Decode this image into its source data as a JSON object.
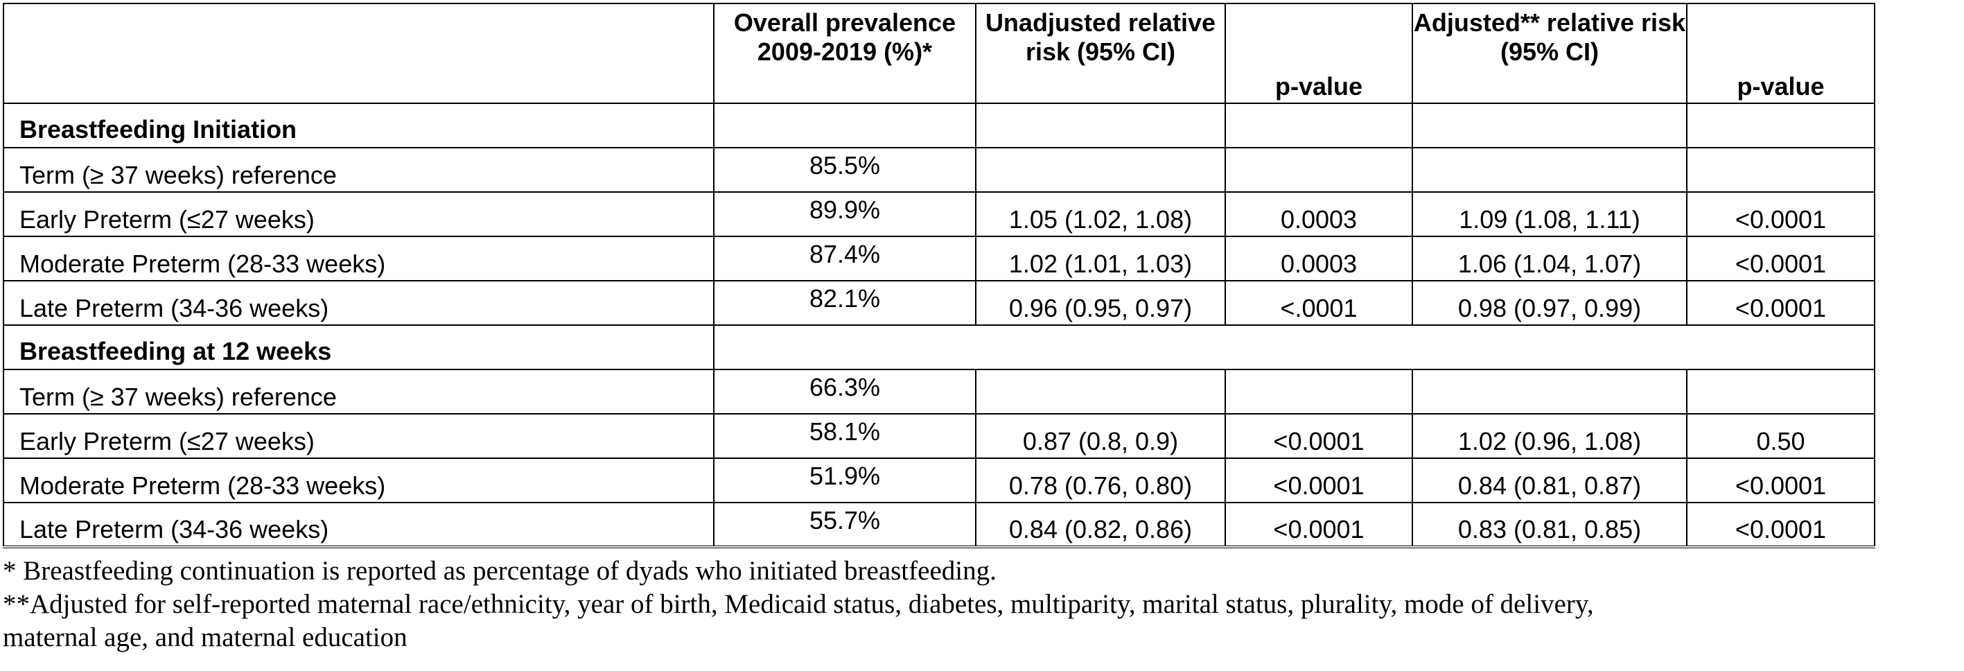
{
  "table": {
    "headers": {
      "label": "",
      "overall": "Overall prevalence 2009-2019 (%)*",
      "unadjusted": "Unadjusted relative risk (95% CI)",
      "p_value_1": "p-value",
      "adjusted": "Adjusted** relative risk (95% CI)",
      "p_value_2": "p-value"
    },
    "sections": [
      {
        "title": "Breastfeeding Initiation",
        "rows": [
          {
            "label": "Term (≥ 37 weeks) reference",
            "overall": "85.5%",
            "unadjusted": "",
            "p1": "",
            "adjusted": "",
            "p2": ""
          },
          {
            "label": "Early Preterm (≤27 weeks)",
            "overall": "89.9%",
            "unadjusted": "1.05 (1.02, 1.08)",
            "p1": "0.0003",
            "adjusted": "1.09 (1.08, 1.11)",
            "p2": "<0.0001"
          },
          {
            "label": "Moderate Preterm (28-33 weeks)",
            "overall": "87.4%",
            "unadjusted": "1.02 (1.01, 1.03)",
            "p1": "0.0003",
            "adjusted": "1.06 (1.04, 1.07)",
            "p2": "<0.0001"
          },
          {
            "label": "Late Preterm (34-36 weeks)",
            "overall": "82.1%",
            "unadjusted": "0.96 (0.95, 0.97)",
            "p1": "<.0001",
            "adjusted": "0.98 (0.97, 0.99)",
            "p2": "<0.0001"
          }
        ]
      },
      {
        "title": "Breastfeeding at 12 weeks",
        "rows": [
          {
            "label": "Term (≥ 37 weeks) reference",
            "overall": "66.3%",
            "unadjusted": "",
            "p1": "",
            "adjusted": "",
            "p2": ""
          },
          {
            "label": "Early Preterm (≤27 weeks)",
            "overall": "58.1%",
            "unadjusted": "0.87 (0.8, 0.9)",
            "p1": "<0.0001",
            "adjusted": "1.02 (0.96, 1.08)",
            "p2": "0.50"
          },
          {
            "label": "Moderate Preterm (28-33 weeks)",
            "overall": "51.9%",
            "unadjusted": "0.78 (0.76, 0.80)",
            "p1": "<0.0001",
            "adjusted": "0.84 (0.81, 0.87)",
            "p2": "<0.0001"
          },
          {
            "label": "Late Preterm (34-36 weeks)",
            "overall": "55.7%",
            "unadjusted": "0.84 (0.82, 0.86)",
            "p1": "<0.0001",
            "adjusted": "0.83 (0.81, 0.85)",
            "p2": "<0.0001"
          }
        ]
      }
    ]
  },
  "footnotes": {
    "note1": "* Breastfeeding continuation is reported as percentage of dyads who initiated breastfeeding.",
    "note2_line1": "**Adjusted for self-reported maternal race/ethnicity, year of birth, Medicaid status, diabetes, multiparity, marital status, plurality, mode of delivery,",
    "note2_line2": "maternal age, and maternal education"
  }
}
